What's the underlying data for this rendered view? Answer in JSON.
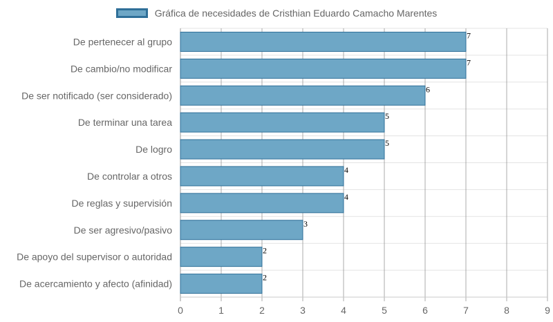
{
  "chart_data": {
    "type": "bar",
    "orientation": "horizontal",
    "title": "",
    "series": [
      {
        "name": "Gráfica de necesidades de Cristhian Eduardo Camacho Marentes",
        "values": [
          7,
          7,
          6,
          5,
          5,
          4,
          4,
          3,
          2,
          2
        ],
        "color": "#6ea7c6",
        "border_color": "#2f6f98"
      }
    ],
    "categories": [
      "De pertenecer al grupo",
      "De cambio/no modificar",
      "De ser notificado (ser considerado)",
      "De terminar una tarea",
      "De logro",
      "De controlar a otros",
      "De reglas y supervisión",
      "De ser agresivo/pasivo",
      "De apoyo del supervisor o autoridad",
      "De acercamiento y afecto (afinidad)"
    ],
    "xlim": [
      0,
      9
    ],
    "xticks": [
      "0",
      "1",
      "2",
      "3",
      "4",
      "5",
      "6",
      "7",
      "8",
      "9"
    ],
    "grid": true,
    "legend_position": "top",
    "data_labels": [
      "7",
      "7",
      "6",
      "5",
      "5",
      "4",
      "4",
      "3",
      "2",
      "2"
    ]
  }
}
